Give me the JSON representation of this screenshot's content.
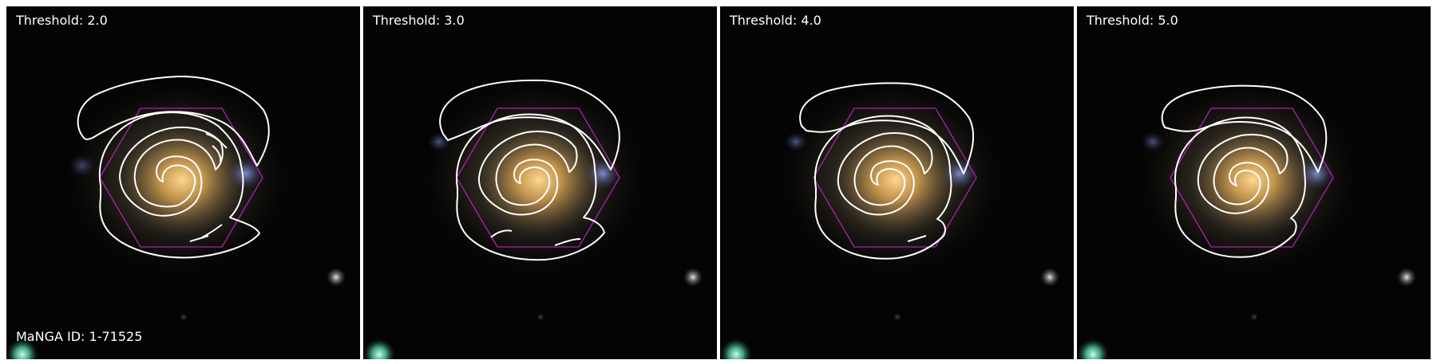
{
  "figure": {
    "panels": [
      {
        "threshold_label": "Threshold: 2.0"
      },
      {
        "threshold_label": "Threshold: 3.0"
      },
      {
        "threshold_label": "Threshold: 4.0"
      },
      {
        "threshold_label": "Threshold: 5.0"
      }
    ],
    "manga_id_label": "MaNGA ID: 1-71525"
  },
  "colors": {
    "contour": "#ffffff",
    "hexagon": "#b020b0",
    "background": "#040404",
    "galaxy_core": "#e8b45a",
    "blue_knot": "#6a78c8"
  }
}
